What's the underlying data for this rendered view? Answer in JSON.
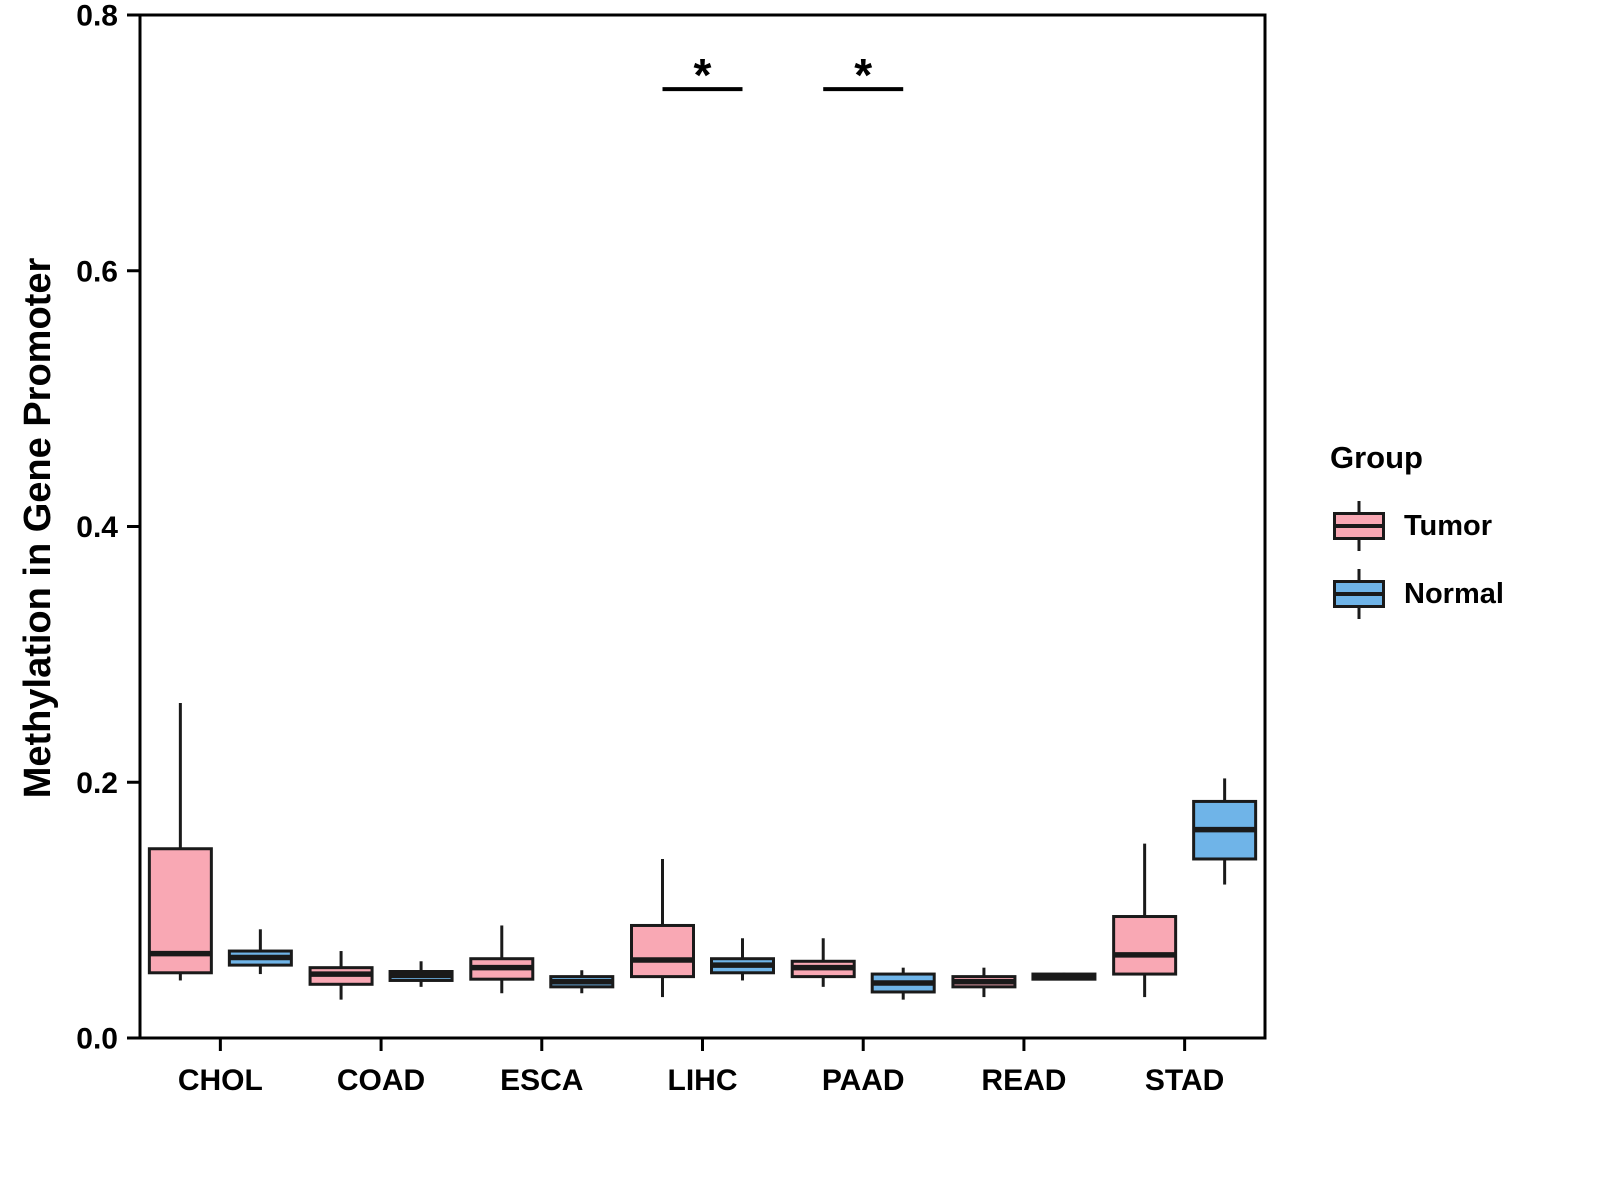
{
  "ylabel": "Methylation in Gene Promoter",
  "legend": {
    "title": "Group",
    "items": [
      {
        "label": "Tumor",
        "color": "#F9A8B4"
      },
      {
        "label": "Normal",
        "color": "#6FB4E8"
      }
    ]
  },
  "chart_data": {
    "type": "box",
    "title": "",
    "xlabel": "",
    "ylabel": "Methylation in Gene Promoter",
    "categories": [
      "CHOL",
      "COAD",
      "ESCA",
      "LIHC",
      "PAAD",
      "READ",
      "STAD"
    ],
    "groups": [
      "Tumor",
      "Normal"
    ],
    "ylim": [
      0.0,
      0.8
    ],
    "yticks": [
      0.0,
      0.2,
      0.4,
      0.6,
      0.8
    ],
    "ytick_labels": [
      "0.0",
      "0.2",
      "0.4",
      "0.6",
      "0.8"
    ],
    "grid": false,
    "legend_position": "right",
    "stroke_color": "#1a1a1a",
    "series": [
      {
        "name": "Tumor",
        "color": "#F9A8B4",
        "boxes": [
          {
            "category": "CHOL",
            "min": 0.045,
            "q1": 0.051,
            "median": 0.066,
            "q3": 0.148,
            "max": 0.262
          },
          {
            "category": "COAD",
            "min": 0.03,
            "q1": 0.042,
            "median": 0.05,
            "q3": 0.055,
            "max": 0.068
          },
          {
            "category": "ESCA",
            "min": 0.035,
            "q1": 0.046,
            "median": 0.055,
            "q3": 0.062,
            "max": 0.088
          },
          {
            "category": "LIHC",
            "min": 0.032,
            "q1": 0.048,
            "median": 0.061,
            "q3": 0.088,
            "max": 0.14
          },
          {
            "category": "PAAD",
            "min": 0.04,
            "q1": 0.048,
            "median": 0.055,
            "q3": 0.06,
            "max": 0.078
          },
          {
            "category": "READ",
            "min": 0.032,
            "q1": 0.04,
            "median": 0.044,
            "q3": 0.048,
            "max": 0.055
          },
          {
            "category": "STAD",
            "min": 0.032,
            "q1": 0.05,
            "median": 0.065,
            "q3": 0.095,
            "max": 0.152
          }
        ]
      },
      {
        "name": "Normal",
        "color": "#6FB4E8",
        "boxes": [
          {
            "category": "CHOL",
            "min": 0.05,
            "q1": 0.057,
            "median": 0.063,
            "q3": 0.068,
            "max": 0.085
          },
          {
            "category": "COAD",
            "min": 0.04,
            "q1": 0.045,
            "median": 0.049,
            "q3": 0.052,
            "max": 0.06
          },
          {
            "category": "ESCA",
            "min": 0.035,
            "q1": 0.04,
            "median": 0.044,
            "q3": 0.048,
            "max": 0.053
          },
          {
            "category": "LIHC",
            "min": 0.045,
            "q1": 0.051,
            "median": 0.057,
            "q3": 0.062,
            "max": 0.078
          },
          {
            "category": "PAAD",
            "min": 0.03,
            "q1": 0.036,
            "median": 0.043,
            "q3": 0.05,
            "max": 0.055
          },
          {
            "category": "READ",
            "min": 0.045,
            "q1": 0.046,
            "median": 0.048,
            "q3": 0.05,
            "max": 0.051
          },
          {
            "category": "STAD",
            "min": 0.12,
            "q1": 0.14,
            "median": 0.163,
            "q3": 0.185,
            "max": 0.203
          }
        ]
      }
    ],
    "significance": [
      {
        "category": "LIHC",
        "label": "*",
        "y": 0.742
      },
      {
        "category": "PAAD",
        "label": "*",
        "y": 0.742
      }
    ]
  }
}
